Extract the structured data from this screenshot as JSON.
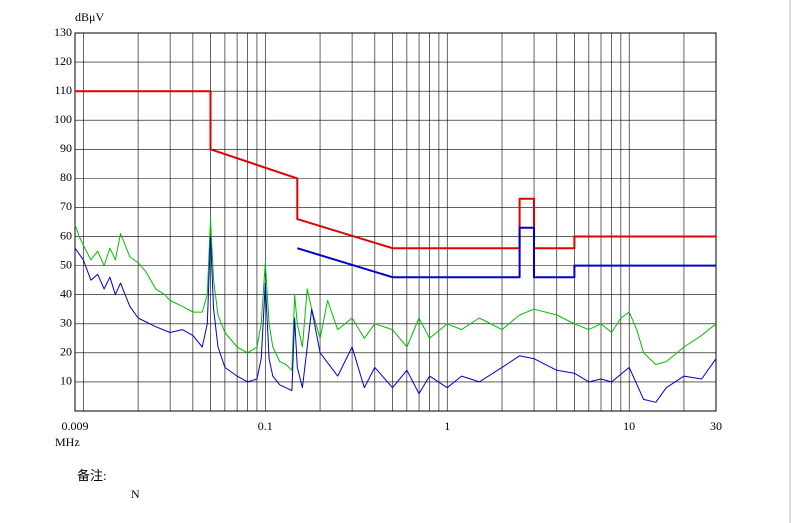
{
  "chart_data": {
    "type": "line",
    "ylabel": "dBμV",
    "xlabel": "MHz",
    "xlog": true,
    "xlim": [
      0.009,
      30
    ],
    "xticks": [
      0.009,
      0.1,
      1,
      10,
      30
    ],
    "xgrid": [
      0.01,
      0.02,
      0.03,
      0.04,
      0.05,
      0.06,
      0.07,
      0.08,
      0.09,
      0.1,
      0.2,
      0.3,
      0.4,
      0.5,
      0.6,
      0.7,
      0.8,
      0.9,
      1,
      2,
      3,
      4,
      5,
      6,
      7,
      8,
      9,
      10,
      20,
      30
    ],
    "ylim": [
      0,
      130
    ],
    "yticks": [
      10,
      20,
      30,
      40,
      50,
      60,
      70,
      80,
      90,
      100,
      110,
      120,
      130
    ],
    "grid": true,
    "series": [
      {
        "color": "#00c000",
        "width": 1,
        "x": [
          0.009,
          0.0095,
          0.01,
          0.011,
          0.012,
          0.013,
          0.014,
          0.015,
          0.016,
          0.017,
          0.018,
          0.02,
          0.022,
          0.025,
          0.028,
          0.03,
          0.035,
          0.04,
          0.045,
          0.048,
          0.05,
          0.052,
          0.055,
          0.06,
          0.07,
          0.08,
          0.09,
          0.095,
          0.1,
          0.105,
          0.11,
          0.12,
          0.13,
          0.14,
          0.145,
          0.15,
          0.16,
          0.17,
          0.18,
          0.2,
          0.22,
          0.25,
          0.3,
          0.35,
          0.4,
          0.5,
          0.6,
          0.7,
          0.8,
          1,
          1.2,
          1.5,
          2,
          2.5,
          3,
          4,
          5,
          6,
          7,
          8,
          9,
          10,
          11,
          12,
          14,
          16,
          20,
          25,
          30
        ],
        "values": [
          64,
          60,
          57,
          52,
          55,
          50,
          56,
          52,
          61,
          57,
          53,
          51,
          48,
          42,
          40,
          38,
          36,
          34,
          34,
          40,
          66,
          45,
          33,
          27,
          22,
          20,
          22,
          30,
          51,
          30,
          22,
          17,
          16,
          14,
          40,
          30,
          22,
          42,
          35,
          25,
          38,
          28,
          32,
          25,
          30,
          28,
          22,
          32,
          25,
          30,
          28,
          32,
          28,
          33,
          35,
          33,
          30,
          28,
          30,
          27,
          32,
          34,
          28,
          20,
          16,
          17,
          22,
          26,
          30
        ]
      },
      {
        "color": "#0000c8",
        "width": 1,
        "x": [
          0.009,
          0.01,
          0.011,
          0.012,
          0.013,
          0.014,
          0.015,
          0.016,
          0.018,
          0.02,
          0.025,
          0.03,
          0.035,
          0.04,
          0.045,
          0.048,
          0.05,
          0.052,
          0.055,
          0.06,
          0.07,
          0.08,
          0.09,
          0.095,
          0.1,
          0.105,
          0.11,
          0.12,
          0.14,
          0.145,
          0.15,
          0.16,
          0.18,
          0.2,
          0.25,
          0.3,
          0.35,
          0.4,
          0.5,
          0.6,
          0.7,
          0.8,
          1,
          1.2,
          1.5,
          2,
          2.5,
          3,
          4,
          5,
          6,
          7,
          8,
          10,
          12,
          14,
          16,
          20,
          25,
          30
        ],
        "values": [
          56,
          52,
          45,
          47,
          42,
          46,
          40,
          44,
          36,
          32,
          29,
          27,
          28,
          26,
          22,
          30,
          60,
          35,
          22,
          15,
          12,
          10,
          11,
          18,
          44,
          18,
          12,
          9,
          7,
          32,
          15,
          8,
          35,
          20,
          12,
          22,
          8,
          15,
          8,
          14,
          6,
          12,
          8,
          12,
          10,
          15,
          19,
          18,
          14,
          13,
          10,
          11,
          10,
          15,
          4,
          3,
          8,
          12,
          11,
          18
        ]
      },
      {
        "color": "#e00000",
        "width": 2,
        "x": [
          0.009,
          0.05,
          0.05,
          0.15,
          0.15,
          0.5,
          2.5,
          2.5,
          3,
          3,
          5,
          5,
          30
        ],
        "values": [
          110,
          110,
          90,
          80,
          66,
          56,
          56,
          73,
          73,
          56,
          56,
          60,
          60
        ]
      },
      {
        "color": "#0000c8",
        "width": 2,
        "x": [
          0.15,
          0.5,
          2.5,
          2.5,
          3,
          3,
          5,
          5,
          30
        ],
        "values": [
          56,
          46,
          46,
          63,
          63,
          46,
          46,
          50,
          50
        ]
      }
    ]
  },
  "notes": {
    "label": "备注:",
    "value": "N"
  }
}
